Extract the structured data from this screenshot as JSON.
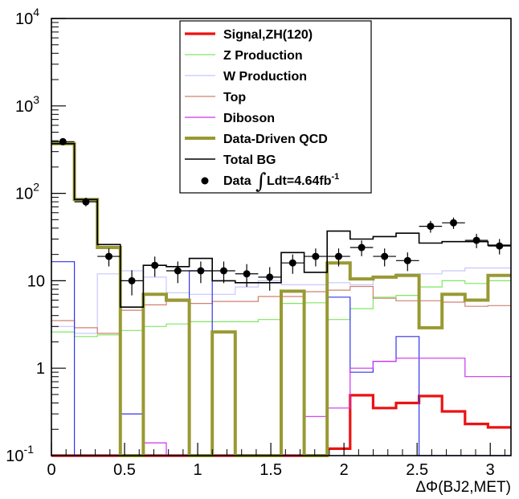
{
  "chart_data": {
    "type": "histogram",
    "title": "",
    "xlabel": "ΔΦ(BJ2,MET)",
    "ylabel": "",
    "xlim": [
      0,
      3.1416
    ],
    "ylim": [
      0.1,
      10000
    ],
    "yscale": "log",
    "bin_edges": [
      0,
      0.1571,
      0.3142,
      0.4712,
      0.6283,
      0.7854,
      0.9425,
      1.0996,
      1.2566,
      1.4137,
      1.5708,
      1.7279,
      1.885,
      2.042,
      2.1991,
      2.3562,
      2.5133,
      2.6704,
      2.8274,
      2.9845,
      3.1416
    ],
    "x_ticks": [
      {
        "value": 0,
        "label": "0"
      },
      {
        "value": 0.5,
        "label": "0.5"
      },
      {
        "value": 1,
        "label": "1"
      },
      {
        "value": 1.5,
        "label": "1.5"
      },
      {
        "value": 2,
        "label": "2"
      },
      {
        "value": 2.5,
        "label": "2.5"
      },
      {
        "value": 3,
        "label": "3"
      }
    ],
    "y_ticks": [
      {
        "value": 0.1,
        "base": "10",
        "exp": "-1"
      },
      {
        "value": 1,
        "base": "1",
        "exp": ""
      },
      {
        "value": 10,
        "base": "10",
        "exp": ""
      },
      {
        "value": 100,
        "base": "10",
        "exp": "2"
      },
      {
        "value": 1000,
        "base": "10",
        "exp": "3"
      },
      {
        "value": 10000,
        "base": "10",
        "exp": "4"
      }
    ],
    "legend": {
      "placement": "top-center",
      "entries": [
        {
          "series": "signal",
          "label": "Signal,ZH(120)"
        },
        {
          "series": "zprod",
          "label": "Z Production"
        },
        {
          "series": "wprod",
          "label": "W Production"
        },
        {
          "series": "top",
          "label": "Top"
        },
        {
          "series": "diboson",
          "label": "Diboson"
        },
        {
          "series": "qcd",
          "label": "Data-Driven QCD"
        },
        {
          "series": "totalbg",
          "label": "Total BG"
        },
        {
          "series": "data",
          "label": "Data",
          "extra": "Ldt=4.64fb",
          "extra_sup": "-1"
        }
      ]
    },
    "series": [
      {
        "key": "signal",
        "name": "Signal,ZH(120)",
        "color": "#ee1111",
        "width": 3.2,
        "values": [
          0.1,
          0.1,
          0.1,
          0.1,
          0.1,
          0.1,
          0.1,
          0.1,
          0.1,
          0.1,
          0.1,
          0.1,
          0.12,
          0.49,
          0.35,
          0.4,
          0.48,
          0.32,
          0.23,
          0.21
        ]
      },
      {
        "key": "zprod",
        "name": "Z Production",
        "color": "#7ee860",
        "width": 1.2,
        "values": [
          2.6,
          2.3,
          2.4,
          2.7,
          3.0,
          3.2,
          3.4,
          3.4,
          3.4,
          3.6,
          5.5,
          5.6,
          3.6,
          4.8,
          6.5,
          6.8,
          8.5,
          10,
          9.3,
          10
        ]
      },
      {
        "key": "wprod",
        "name": "W Production",
        "color": "#c8c8ff",
        "width": 1.2,
        "values": [
          3.0,
          2.5,
          12,
          13,
          11,
          7.3,
          7,
          7,
          8.5,
          10,
          9,
          9,
          9.5,
          9,
          11,
          12,
          12,
          13,
          14,
          14
        ]
      },
      {
        "key": "top",
        "name": "Top",
        "color": "#d08070",
        "width": 1.2,
        "values": [
          3.5,
          2.9,
          2.5,
          4.6,
          5.3,
          5.8,
          5.5,
          5.8,
          5.8,
          6.6,
          6.6,
          7.5,
          7.8,
          8.6,
          6.3,
          5.9,
          5.9,
          5.7,
          5.1,
          5.2
        ]
      },
      {
        "key": "blue",
        "name": "",
        "color": "#3333ee",
        "width": 1.2,
        "values": [
          16.5,
          0.1,
          0.1,
          0.3,
          0.1,
          0.1,
          13,
          0.1,
          0.1,
          0.1,
          0.1,
          0.1,
          6.5,
          0.9,
          1.2,
          2.3,
          0.1,
          0.1,
          0.1,
          0.1
        ]
      },
      {
        "key": "diboson",
        "name": "Diboson",
        "color": "#cc33ee",
        "width": 1.2,
        "values": [
          0.1,
          0.1,
          0.1,
          0.1,
          0.14,
          0.1,
          0.1,
          0.1,
          0.1,
          0.1,
          0.1,
          0.28,
          0.35,
          1.0,
          1.2,
          1.3,
          1.3,
          1.3,
          0.8,
          0.8
        ]
      },
      {
        "key": "qcd",
        "name": "Data-Driven QCD",
        "color": "#999933",
        "width": 4,
        "values": [
          370,
          85,
          24,
          0.1,
          7,
          6,
          0.1,
          2.6,
          0.1,
          0.1,
          7.6,
          0.1,
          16,
          10.5,
          11,
          11.5,
          2.9,
          7,
          6,
          11.5
        ]
      },
      {
        "key": "totalbg",
        "name": "Total BG",
        "color": "#000000",
        "width": 1.6,
        "values": [
          370,
          85,
          26,
          5,
          15,
          14.5,
          18,
          10,
          9.5,
          9.5,
          21,
          12.5,
          37,
          30,
          32,
          35,
          27,
          28,
          28,
          25.5
        ]
      }
    ],
    "data_points": {
      "name": "Data",
      "values": [
        390,
        80,
        19,
        10,
        15,
        13,
        13,
        13,
        12,
        11,
        16,
        19,
        19,
        24,
        19,
        17,
        42,
        46,
        29,
        25
      ],
      "errors_y": [
        20,
        9,
        4.4,
        3.2,
        3.9,
        3.6,
        3.6,
        3.6,
        3.5,
        3.3,
        4,
        4.4,
        4.4,
        4.9,
        4.4,
        4.1,
        6.5,
        6.8,
        5.4,
        5
      ]
    }
  }
}
